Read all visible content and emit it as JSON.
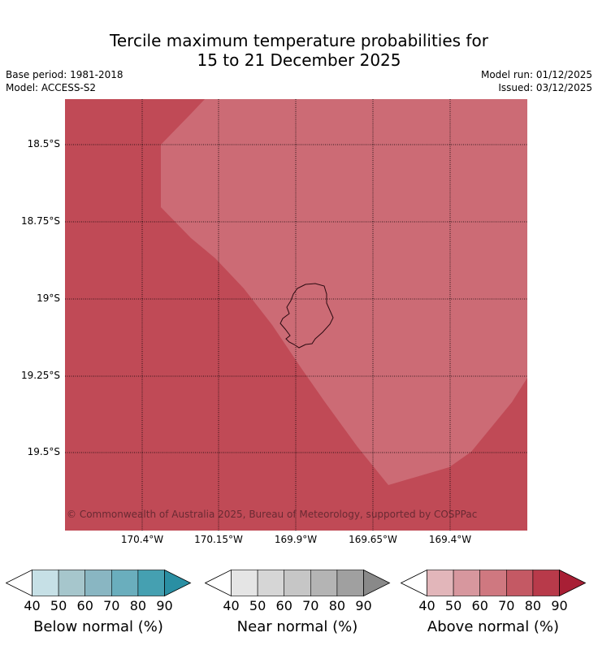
{
  "header": {
    "title_line1": "Tercile maximum temperature probabilities for",
    "title_line2": "15 to 21 December 2025",
    "base_period": "Base period: 1981-2018",
    "model": "Model: ACCESS-S2",
    "model_run": "Model run: 01/12/2025",
    "issued": "Issued: 03/12/2025"
  },
  "map": {
    "copyright": "© Commonwealth of Australia 2025, Bureau of Meteorology, supported by COSPPac",
    "lat_labels": [
      "18.5°S",
      "18.75°S",
      "19°S",
      "19.25°S",
      "19.5°S"
    ],
    "lon_labels": [
      "170.4°W",
      "170.15°W",
      "169.9°W",
      "169.65°W",
      "169.4°W"
    ],
    "colors": {
      "above_80": "#c04a56",
      "above_70": "#cc6b75",
      "coastline": "#2a0a10",
      "gridline": "#000000"
    }
  },
  "colorbars": [
    {
      "name": "below",
      "label": "Below normal (%)",
      "ticks": [
        "40",
        "50",
        "60",
        "70",
        "80",
        "90"
      ],
      "colors": [
        "#c6e0e6",
        "#a6c6cc",
        "#89b6c2",
        "#6aaebd",
        "#45a0b1",
        "#2a8fa3"
      ]
    },
    {
      "name": "near",
      "label": "Near normal (%)",
      "ticks": [
        "40",
        "50",
        "60",
        "70",
        "80",
        "90"
      ],
      "colors": [
        "#e5e5e5",
        "#d6d6d6",
        "#c6c6c6",
        "#b4b4b4",
        "#a0a0a0",
        "#898989"
      ]
    },
    {
      "name": "above",
      "label": "Above normal (%)",
      "ticks": [
        "40",
        "50",
        "60",
        "70",
        "80",
        "90"
      ],
      "colors": [
        "#e2b6ba",
        "#d7979e",
        "#cf7880",
        "#c45964",
        "#b83a4a",
        "#a81f35"
      ]
    }
  ]
}
